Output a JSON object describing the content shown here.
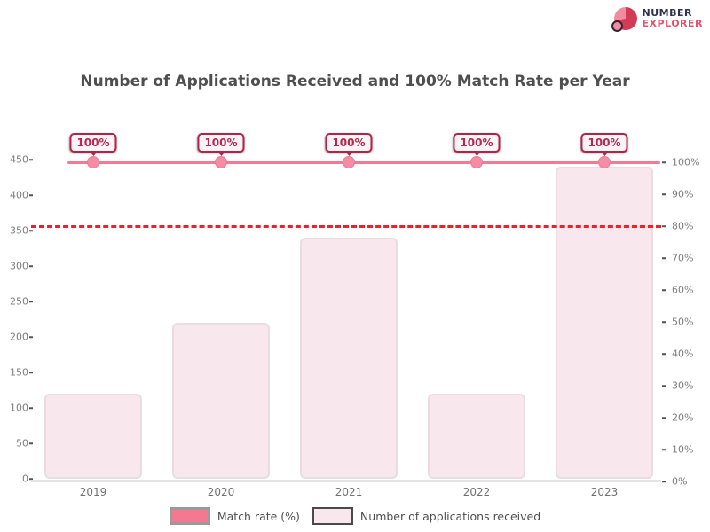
{
  "logo": {
    "line1": "NUMBER",
    "line2": "EXPLORER",
    "icon": "pie-chart-logo-icon",
    "colors": {
      "icon": "#d23b56",
      "line1": "#2f3350",
      "line2": "#e8506e"
    }
  },
  "title": "Number of Applications Received and 100% Match Rate per Year",
  "chart_data": {
    "type": "bar",
    "categories": [
      "2019",
      "2020",
      "2021",
      "2022",
      "2023"
    ],
    "series": [
      {
        "name": "Number of applications received",
        "type": "bar",
        "axis": "left",
        "values": [
          120,
          220,
          340,
          120,
          440
        ],
        "color": "#f9e7ee"
      },
      {
        "name": "Match rate (%)",
        "type": "line",
        "axis": "right",
        "values": [
          100,
          100,
          100,
          100,
          100
        ],
        "point_labels": [
          "100%",
          "100%",
          "100%",
          "100%",
          "100%"
        ],
        "color": "#f5798f"
      }
    ],
    "left_axis": {
      "min": 0,
      "max": 450,
      "step": 50,
      "ticks": [
        "450",
        "400",
        "350",
        "300",
        "250",
        "200",
        "150",
        "100",
        "50",
        "0"
      ]
    },
    "right_axis": {
      "min": 0,
      "max": 100,
      "step": 10,
      "ticks": [
        "100%",
        "90%",
        "80%",
        "70%",
        "60%",
        "50%",
        "40%",
        "30%",
        "20%",
        "10%",
        "0%"
      ]
    },
    "threshold": {
      "value": 80,
      "axis": "right",
      "style": "dashed",
      "color": "#e8232b"
    },
    "legend_position": "bottom",
    "grid": false,
    "xlabel": "",
    "ylabel": ""
  },
  "legend": {
    "items": [
      {
        "label": "Match rate (%)",
        "swatch_color": "#f4788f",
        "swatch_border": "#9b9b9b"
      },
      {
        "label": "Number of applications received",
        "swatch_color": "#f9e7ee",
        "swatch_border": "#4a4a4a"
      }
    ]
  },
  "colors": {
    "bar_fill": "#f9e7ee",
    "bar_border": "#e8dde3",
    "line": "#f5798f",
    "marker": "#f48da4",
    "badge_border": "#ac2747",
    "badge_bg": "#fdf2f5",
    "badge_text": "#b42a4d",
    "threshold": "#e8232b",
    "title_text": "#4f4f4f",
    "axis_text": "#7d7d7d"
  }
}
